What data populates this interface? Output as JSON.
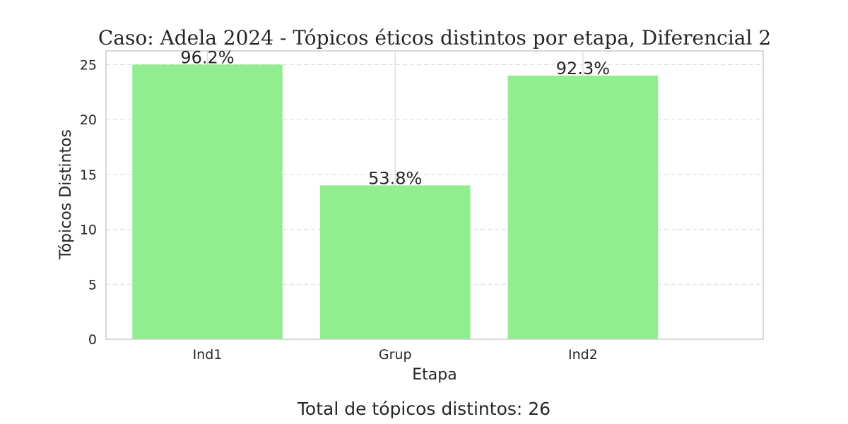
{
  "chart_data": {
    "type": "bar",
    "title": "Caso: Adela 2024 - Tópicos éticos distintos por etapa, Diferencial 2",
    "xlabel": "Etapa",
    "ylabel": "Tópicos Distintos",
    "categories": [
      "Ind1",
      "Grup",
      "Ind2"
    ],
    "values": [
      25,
      14,
      24
    ],
    "data_labels": [
      "96.2%",
      "53.8%",
      "92.3%"
    ],
    "ylim": [
      0,
      26.25
    ],
    "yticks": [
      "0",
      "5",
      "10",
      "15",
      "20",
      "25"
    ],
    "grid": true,
    "bar_color": "#90ee90",
    "footer": "Total de tópicos distintos: 26"
  }
}
